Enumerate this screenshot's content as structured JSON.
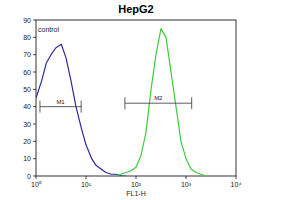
{
  "chart_data": {
    "type": "line",
    "title": "HepG2",
    "x_label": "FL1-H",
    "log": "x",
    "grid": false,
    "x": [
      1,
      1.3,
      1.6,
      2,
      2.5,
      3.2,
      4,
      5,
      6.3,
      8,
      10,
      13,
      16,
      20,
      25,
      32,
      40,
      50,
      63,
      79,
      100,
      126,
      158,
      200,
      251,
      316,
      398,
      501,
      631,
      794,
      1000,
      1259,
      1585,
      1995,
      2512
    ],
    "series": [
      {
        "name": "control",
        "color": "#2b2b9e",
        "values": [
          45,
          55,
          65,
          70,
          74,
          76,
          68,
          55,
          40,
          28,
          18,
          10,
          6,
          4,
          2,
          1,
          1,
          0,
          0,
          null,
          null,
          null,
          null,
          null,
          null,
          null,
          null,
          null,
          null,
          null,
          null,
          null,
          null,
          null,
          null
        ]
      },
      {
        "color": "#3ccc3c",
        "values": [
          null,
          null,
          null,
          null,
          null,
          null,
          null,
          null,
          null,
          null,
          null,
          null,
          null,
          null,
          null,
          null,
          0,
          1,
          2,
          3,
          5,
          12,
          25,
          50,
          70,
          85,
          80,
          60,
          40,
          20,
          10,
          4,
          2,
          1,
          0
        ]
      }
    ],
    "xlim": [
      1,
      10000
    ],
    "xticks": [
      {
        "value": 1,
        "label": "10⁰"
      },
      {
        "value": 10,
        "label": "10¹"
      },
      {
        "value": 100,
        "label": "10²"
      },
      {
        "value": 1000,
        "label": "10³"
      },
      {
        "value": 10000,
        "label": "10⁴"
      }
    ],
    "ylim": [
      0,
      90
    ],
    "yticks": [
      0,
      10,
      20,
      30,
      40,
      50,
      60,
      70,
      80,
      90
    ],
    "annotations": [
      {
        "label": "M1",
        "x": [
          1.2,
          8
        ],
        "y": 40
      },
      {
        "label": "M2",
        "x": [
          60,
          1300
        ],
        "y": 42
      }
    ]
  }
}
